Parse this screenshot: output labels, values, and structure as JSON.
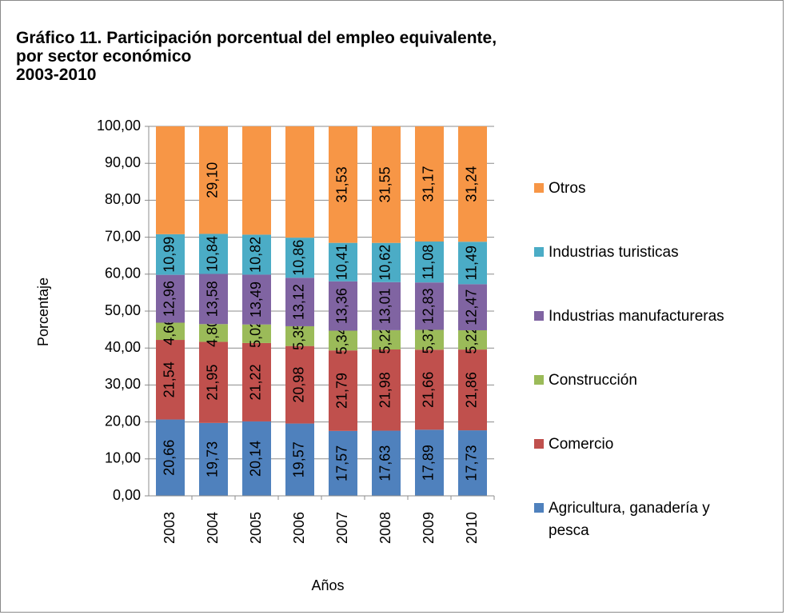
{
  "chart_data": {
    "type": "stacked_bar",
    "title": "Gráfico 11. Participación porcentual del empleo equivalente,\npor sector económico\n2003-2010",
    "x_label": "Años",
    "y_label": "Porcentaje",
    "categories": [
      "2003",
      "2004",
      "2005",
      "2006",
      "2007",
      "2008",
      "2009",
      "2010"
    ],
    "series": [
      {
        "name": "Agricultura, ganadería y pesca",
        "color": "#4f81bd",
        "values": [
          20.66,
          19.73,
          20.14,
          19.57,
          17.57,
          17.63,
          17.89,
          17.73
        ],
        "value_labels": [
          "20,66",
          "19,73",
          "20,14",
          "19,57",
          "17,57",
          "17,63",
          "17,89",
          "17,73"
        ]
      },
      {
        "name": "Comercio",
        "color": "#c0504d",
        "values": [
          21.54,
          21.95,
          21.22,
          20.98,
          21.79,
          21.98,
          21.66,
          21.86
        ],
        "value_labels": [
          "21,54",
          "21,95",
          "21,22",
          "20,98",
          "21,79",
          "21,98",
          "21,66",
          "21,86"
        ]
      },
      {
        "name": "Construcción",
        "color": "#9bbb59",
        "values": [
          4.66,
          4.8,
          5.02,
          5.35,
          5.34,
          5.22,
          5.37,
          5.22
        ],
        "value_labels": [
          "4,66",
          "4,80",
          "5,02",
          "5,35",
          "5,34",
          "5,22",
          "5,37",
          "5,22"
        ]
      },
      {
        "name": "Industrias manufactureras",
        "color": "#8064a2",
        "values": [
          12.96,
          13.58,
          13.49,
          13.12,
          13.36,
          13.01,
          12.83,
          12.47
        ],
        "value_labels": [
          "12,96",
          "13,58",
          "13,49",
          "13,12",
          "13,36",
          "13,01",
          "12,83",
          "12,47"
        ]
      },
      {
        "name": "Industrias turisticas",
        "color": "#4bacc6",
        "values": [
          10.99,
          10.84,
          10.82,
          10.86,
          10.41,
          10.62,
          11.08,
          11.49
        ],
        "value_labels": [
          "10,99",
          "10,84",
          "10,82",
          "10,86",
          "10,41",
          "10,62",
          "11,08",
          "11,49"
        ]
      },
      {
        "name": "Otros",
        "color": "#f79646",
        "values": [
          29.19,
          29.1,
          29.31,
          30.12,
          31.53,
          31.55,
          31.17,
          31.24
        ],
        "value_labels": [
          null,
          "29,10",
          null,
          null,
          "31,53",
          "31,55",
          "31,17",
          "31,24"
        ]
      }
    ],
    "ylim": [
      0,
      100
    ],
    "yticks": [
      {
        "value": 0,
        "label": "0,00"
      },
      {
        "value": 10,
        "label": "10,00"
      },
      {
        "value": 20,
        "label": "20,00"
      },
      {
        "value": 30,
        "label": "30,00"
      },
      {
        "value": 40,
        "label": "40,00"
      },
      {
        "value": 50,
        "label": "50,00"
      },
      {
        "value": 60,
        "label": "60,00"
      },
      {
        "value": 70,
        "label": "70,00"
      },
      {
        "value": 80,
        "label": "80,00"
      },
      {
        "value": 90,
        "label": "90,00"
      },
      {
        "value": 100,
        "label": "100,00"
      }
    ],
    "grid": true,
    "legend": "right"
  }
}
